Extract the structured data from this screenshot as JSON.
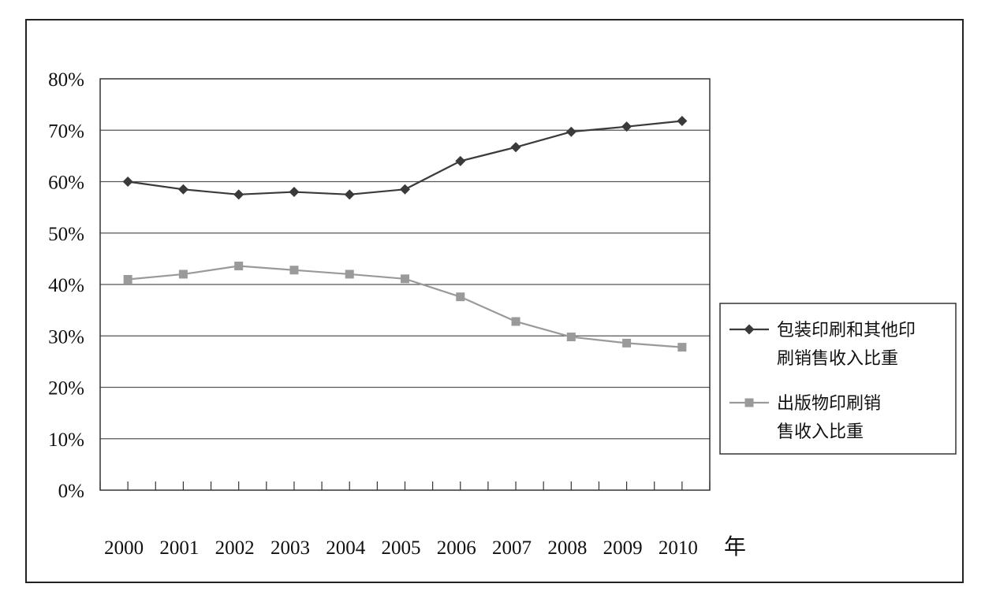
{
  "chart_data": {
    "type": "line",
    "title": "",
    "xlabel": "年",
    "ylabel": "",
    "categories": [
      "2000",
      "2001",
      "2002",
      "2003",
      "2004",
      "2005",
      "2006",
      "2007",
      "2008",
      "2009",
      "2010"
    ],
    "ylim": [
      0,
      80
    ],
    "yticks": [
      0,
      10,
      20,
      30,
      40,
      50,
      60,
      70,
      80
    ],
    "ytick_labels": [
      "0%",
      "10%",
      "20%",
      "30%",
      "40%",
      "50%",
      "60%",
      "70%",
      "80%"
    ],
    "grid": true,
    "legend_position": "right",
    "series": [
      {
        "name_lines": [
          "包装印刷和其他印",
          "刷销售收入比重"
        ],
        "marker": "diamond",
        "color": "#3a3a3a",
        "values": [
          60,
          58.5,
          57.5,
          58,
          57.5,
          58.5,
          64,
          66.7,
          69.7,
          70.7,
          71.8
        ]
      },
      {
        "name_lines": [
          "出版物印刷销",
          "售收入比重"
        ],
        "marker": "square",
        "color": "#9a9a9a",
        "values": [
          41,
          42,
          43.6,
          42.8,
          42,
          41.1,
          37.6,
          32.8,
          29.8,
          28.6,
          27.8
        ]
      }
    ]
  }
}
